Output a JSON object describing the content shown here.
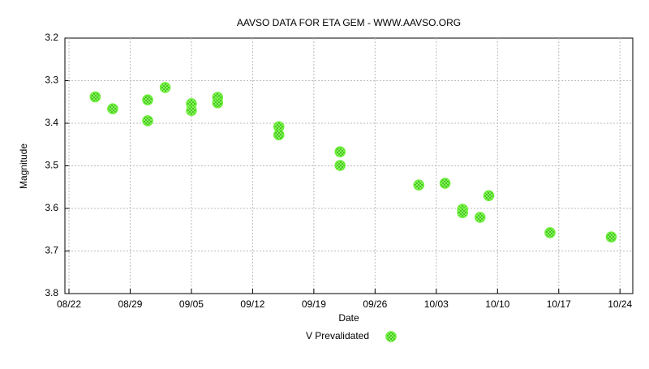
{
  "chart_data": {
    "type": "scatter",
    "title": "AAVSO DATA FOR ETA GEM - WWW.AAVSO.ORG",
    "x_label": "Date",
    "y_label": "Magnitude",
    "xlim": [
      "08/22",
      "10/25"
    ],
    "xticks": [
      "08/22",
      "08/29",
      "09/05",
      "09/12",
      "09/19",
      "09/26",
      "10/03",
      "10/10",
      "10/17",
      "10/24"
    ],
    "ylim": [
      3.2,
      3.8
    ],
    "yticks": [
      3.2,
      3.3,
      3.4,
      3.5,
      3.6,
      3.7,
      3.8
    ],
    "y_inverted": true,
    "grid": true,
    "series": [
      {
        "name": "V Prevalidated",
        "color": "#66ee33",
        "x": [
          "08/25",
          "08/27",
          "08/31",
          "08/31",
          "09/02",
          "09/05",
          "09/05",
          "09/08",
          "09/08",
          "09/15",
          "09/15",
          "09/22",
          "09/22",
          "10/01",
          "10/04",
          "10/06",
          "10/06",
          "10/08",
          "10/09",
          "10/16",
          "10/23"
        ],
        "values": [
          3.338,
          3.366,
          3.345,
          3.394,
          3.316,
          3.354,
          3.37,
          3.339,
          3.352,
          3.408,
          3.427,
          3.467,
          3.499,
          3.545,
          3.541,
          3.602,
          3.61,
          3.621,
          3.57,
          3.657,
          3.667
        ]
      }
    ]
  }
}
